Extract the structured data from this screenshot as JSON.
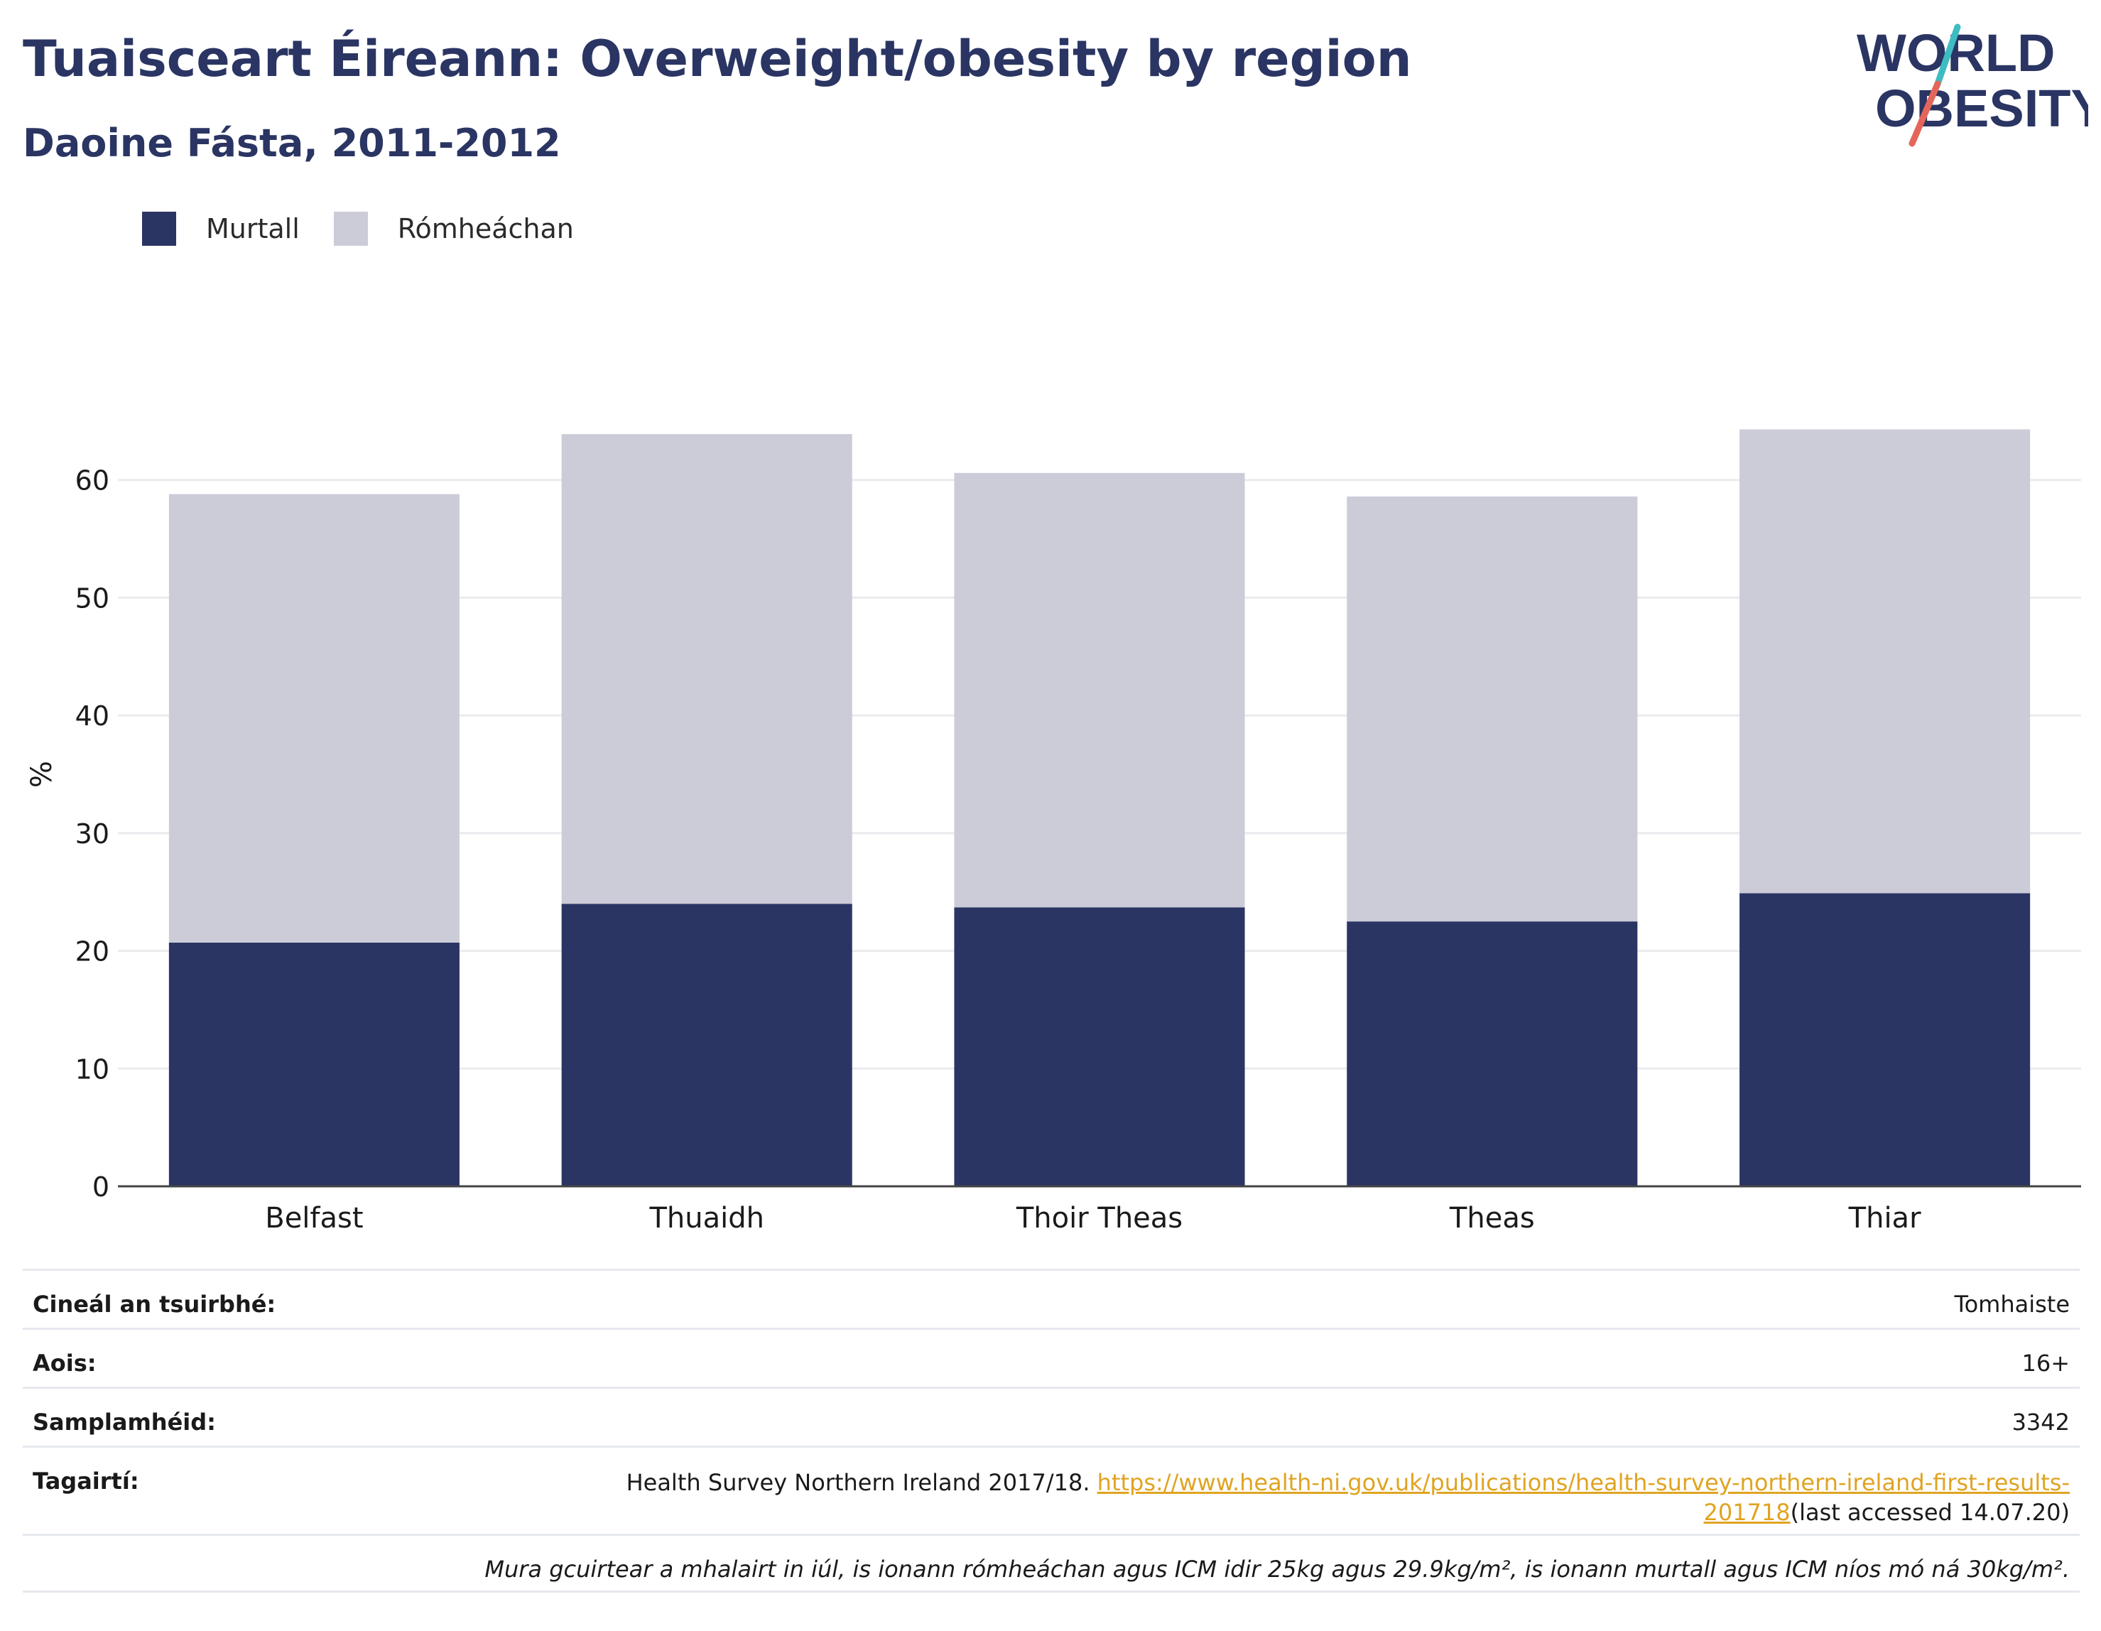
{
  "header": {
    "title": "Tuaisceart Éireann: Overweight/obesity by region",
    "subtitle": "Daoine Fásta, 2011-2012"
  },
  "logo": {
    "line1": "WORLD",
    "line2": "OBESITY"
  },
  "colors": {
    "obese": "#2a3563",
    "overweight": "#cbccd7",
    "text": "#2a3563",
    "link": "#e0a422",
    "logo_teal": "#3dbcc1",
    "logo_coral": "#e4665a"
  },
  "chart_data": {
    "type": "bar",
    "stacked": true,
    "categories": [
      "Belfast",
      "Thuaidh",
      "Thoir Theas",
      "Theas",
      "Thiar"
    ],
    "series": [
      {
        "name": "Murtall",
        "values": [
          20.7,
          24.0,
          23.7,
          22.5,
          24.9
        ]
      },
      {
        "name": "Rómheáchan",
        "values": [
          38.1,
          39.9,
          36.9,
          36.1,
          39.4
        ]
      }
    ],
    "ylabel": "%",
    "ylim": [
      0,
      70
    ],
    "yticks": [
      0,
      10,
      20,
      30,
      40,
      50,
      60
    ],
    "grid": true,
    "legend_position": "top-left"
  },
  "meta": {
    "survey_type_label": "Cineál an tsuirbhé:",
    "survey_type_value": "Tomhaiste",
    "age_label": "Aois:",
    "age_value": "16+",
    "sample_label": "Samplamhéid:",
    "sample_value": "3342",
    "refs_label": "Tagairtí:",
    "refs_text": "Health Survey Northern Ireland 2017/18. ",
    "refs_link_part1": "https://www.health-ni.gov.uk/publications/health-survey-northern-ireland-first-results-",
    "refs_link_part2": "201718",
    "refs_suffix": "(last accessed 14.07.20)",
    "note": "Mura gcuirtear a mhalairt in iúl, is ionann rómheáchan agus ICM idir 25kg agus 29.9kg/m², is ionann murtall agus ICM níos mó ná 30kg/m²."
  }
}
